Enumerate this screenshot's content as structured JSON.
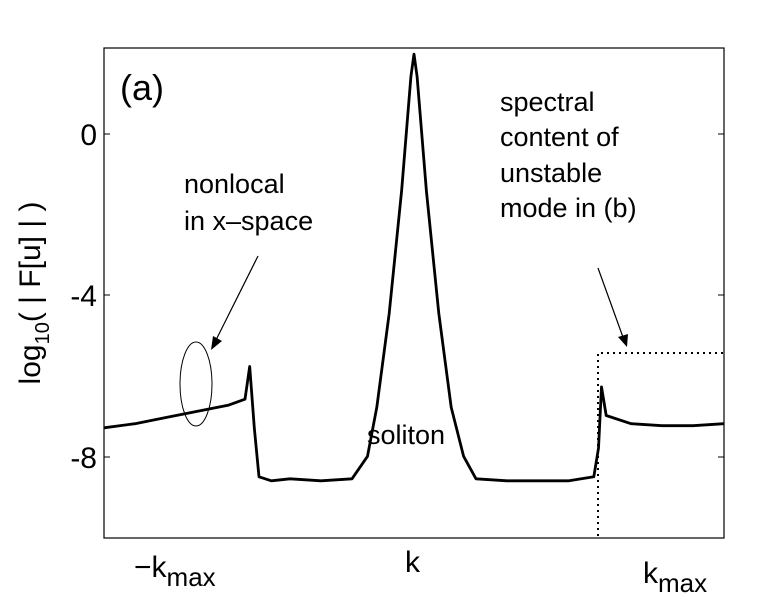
{
  "chart_data": {
    "type": "line",
    "panel_label": "(a)",
    "title": "",
    "xlabel": "",
    "ylabel": {
      "prefix": "log",
      "subscript": "10",
      "suffix": "( | F[u] | )"
    },
    "xlim": [
      -1,
      1
    ],
    "ylim": [
      -10,
      2
    ],
    "yticks": [
      {
        "value": 0,
        "label": "0"
      },
      {
        "value": -4,
        "label": "-4"
      },
      {
        "value": -8,
        "label": "-8"
      }
    ],
    "xticks": [
      {
        "value": -0.5,
        "label_main": "−k",
        "label_sub": "max"
      },
      {
        "value": 0.0,
        "label_main": "k",
        "label_sub": ""
      },
      {
        "value": 0.71,
        "label_main": "k",
        "label_sub": "max"
      }
    ],
    "series": [
      {
        "color": "#000000",
        "points": [
          [
            -1.0,
            -7.3
          ],
          [
            -0.9,
            -7.2
          ],
          [
            -0.8,
            -7.05
          ],
          [
            -0.7,
            -6.9
          ],
          [
            -0.6,
            -6.75
          ],
          [
            -0.545,
            -6.6
          ],
          [
            -0.53,
            -5.8
          ],
          [
            -0.515,
            -7.3
          ],
          [
            -0.5,
            -8.5
          ],
          [
            -0.46,
            -8.6
          ],
          [
            -0.4,
            -8.55
          ],
          [
            -0.3,
            -8.6
          ],
          [
            -0.2,
            -8.55
          ],
          [
            -0.15,
            -8.0
          ],
          [
            -0.12,
            -6.8
          ],
          [
            -0.08,
            -4.5
          ],
          [
            -0.04,
            -1.5
          ],
          [
            -0.01,
            1.3
          ],
          [
            0.0,
            1.85
          ],
          [
            0.01,
            1.3
          ],
          [
            0.04,
            -1.5
          ],
          [
            0.08,
            -4.5
          ],
          [
            0.12,
            -6.8
          ],
          [
            0.16,
            -8.0
          ],
          [
            0.2,
            -8.55
          ],
          [
            0.3,
            -8.6
          ],
          [
            0.4,
            -8.6
          ],
          [
            0.5,
            -8.6
          ],
          [
            0.58,
            -8.5
          ],
          [
            0.595,
            -7.8
          ],
          [
            0.605,
            -6.3
          ],
          [
            0.62,
            -7.0
          ],
          [
            0.7,
            -7.2
          ],
          [
            0.8,
            -7.25
          ],
          [
            0.9,
            -7.25
          ],
          [
            1.0,
            -7.2
          ]
        ]
      }
    ],
    "unstable_region": {
      "x_from": 0.545,
      "y_level": -5.4,
      "style": "dotted"
    },
    "annotations": [
      {
        "lines": [
          "nonlocal",
          "in  x–space"
        ],
        "target": "-k max spike"
      },
      {
        "lines": [
          "spectral",
          "content of",
          "unstable",
          "mode in (b)"
        ],
        "target": "dotted box"
      },
      {
        "lines": [
          "soliton"
        ],
        "target": "central peak"
      }
    ]
  }
}
